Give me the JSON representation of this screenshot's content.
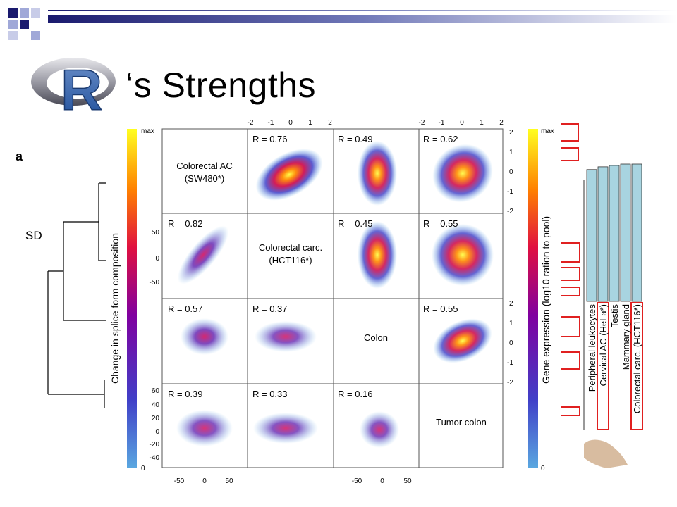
{
  "slide": {
    "title": "‘s Strengths",
    "logo_letter": "R"
  },
  "panel_label": "a",
  "dendrogram": {
    "label": "SD"
  },
  "left_colorbar": {
    "label": "Change in splice form composition",
    "max_label": "max",
    "min_label": "0"
  },
  "right_colorbar": {
    "label": "Gene expression (log10 ration to pool)",
    "max_label": "max",
    "min_label": "0"
  },
  "matrix": {
    "diagonal": [
      [
        "Colorectal AC",
        "(SW480*)"
      ],
      [
        "Colorectal carc.",
        "(HCT116*)"
      ],
      [
        "Colon"
      ],
      [
        "Tumor colon"
      ]
    ],
    "correlations": {
      "r_0_1": "R = 0.76",
      "r_0_2": "R = 0.49",
      "r_0_3": "R = 0.62",
      "r_1_0": "R = 0.82",
      "r_1_2": "R = 0.45",
      "r_1_3": "R = 0.55",
      "r_2_0": "R = 0.57",
      "r_2_1": "R = 0.37",
      "r_2_3": "R = 0.55",
      "r_3_0": "R = 0.39",
      "r_3_1": "R = 0.33",
      "r_3_2": "R = 0.16"
    },
    "top_ticks": [
      "-2",
      "-1",
      "0",
      "1",
      "2"
    ],
    "right_ticks": [
      "2",
      "1",
      "0",
      "-1",
      "-2"
    ],
    "left_ticks_row1": [
      "50",
      "0",
      "-50"
    ],
    "left_ticks_row3": [
      "60",
      "40",
      "20",
      "0",
      "-20",
      "-40"
    ],
    "bottom_ticks": [
      "-50",
      "0",
      "50"
    ]
  },
  "bar_chart": {
    "labels": [
      "Peripheral leukocytes",
      "Cervical AC (HeLa*)",
      "Testis",
      "Mammary gland",
      "Colorectal carc. (HCT116*)"
    ],
    "values": [
      0.96,
      0.98,
      0.99,
      1.0,
      1.0
    ],
    "boxed": [
      false,
      true,
      false,
      false,
      true
    ],
    "bar_color": "#a8d4e0",
    "box_color": "#e02020"
  },
  "colors": {
    "scatter_cool": "#4a90d0",
    "scatter_hot": "#ff8800",
    "title_bar_dark": "#1a1a6e"
  }
}
